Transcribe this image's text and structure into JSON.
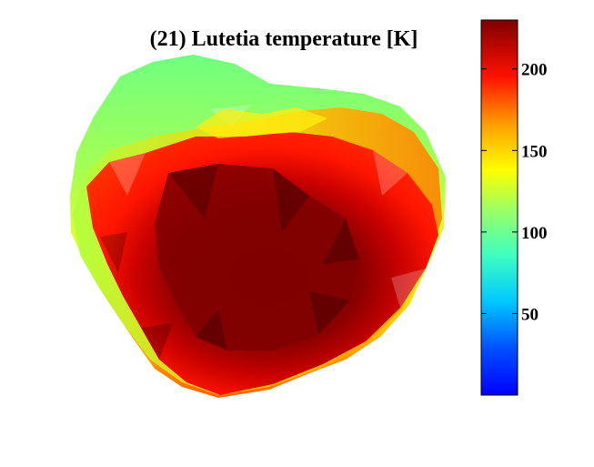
{
  "chart_data": {
    "type": "heatmap",
    "title": "(21) Lutetia temperature [K]",
    "colorbar": {
      "range": [
        0,
        230
      ],
      "ticks": [
        50,
        100,
        150,
        200
      ],
      "colormap": "jet",
      "orientation": "vertical",
      "placement": "right"
    },
    "grid": false,
    "surface": "asteroid shape model shaded by temperature",
    "colors": {
      "hot": "#7f0000",
      "warm": "#ff0000",
      "mid": "#ffff00",
      "cool": "#00ff80",
      "cold": "#0000ff"
    }
  }
}
